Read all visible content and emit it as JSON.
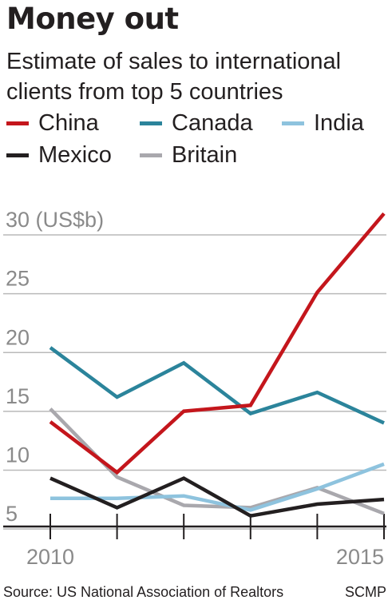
{
  "title": "Money out",
  "subtitle": "Estimate of sales to international clients from top 5 countries",
  "source": "Source: US National Association of Realtors",
  "credit": "SCMP",
  "colors": {
    "background": "#ffffff",
    "grid": "#b9b9b9",
    "axis": "#231f20",
    "tick_text": "#8a8a8a"
  },
  "chart_data": {
    "type": "line",
    "title": "Money out",
    "subtitle": "Estimate of sales to international clients from top 5 countries",
    "ylabel": "(US$b)",
    "x": [
      2010,
      2011,
      2012,
      2013,
      2014,
      2015
    ],
    "x_tick_labels": [
      {
        "x": 2010,
        "label": "2010"
      },
      {
        "x": 2015,
        "label": "2015"
      }
    ],
    "y_ticks": [
      5,
      10,
      15,
      20,
      25,
      30
    ],
    "y_tick_labels": [
      "5",
      "10",
      "15",
      "20",
      "25",
      "30 (US$b)"
    ],
    "ylim": [
      2.5,
      30
    ],
    "grid": "horizontal",
    "legend_position": "top",
    "series": [
      {
        "name": "China",
        "color": "#c4161c",
        "values": [
          11.4,
          7.1,
          12.3,
          12.8,
          22.4,
          29.1
        ]
      },
      {
        "name": "Canada",
        "color": "#2b849b",
        "values": [
          17.7,
          13.5,
          16.4,
          12.1,
          13.9,
          11.3
        ]
      },
      {
        "name": "India",
        "color": "#8ec3de",
        "values": [
          4.9,
          4.9,
          5.1,
          3.9,
          5.7,
          7.8
        ]
      },
      {
        "name": "Mexico",
        "color": "#231f20",
        "values": [
          6.6,
          4.1,
          6.6,
          3.4,
          4.4,
          4.8
        ]
      },
      {
        "name": "Britain",
        "color": "#a9a8ad",
        "values": [
          12.5,
          6.7,
          4.3,
          4.1,
          5.8,
          3.6
        ]
      }
    ]
  }
}
